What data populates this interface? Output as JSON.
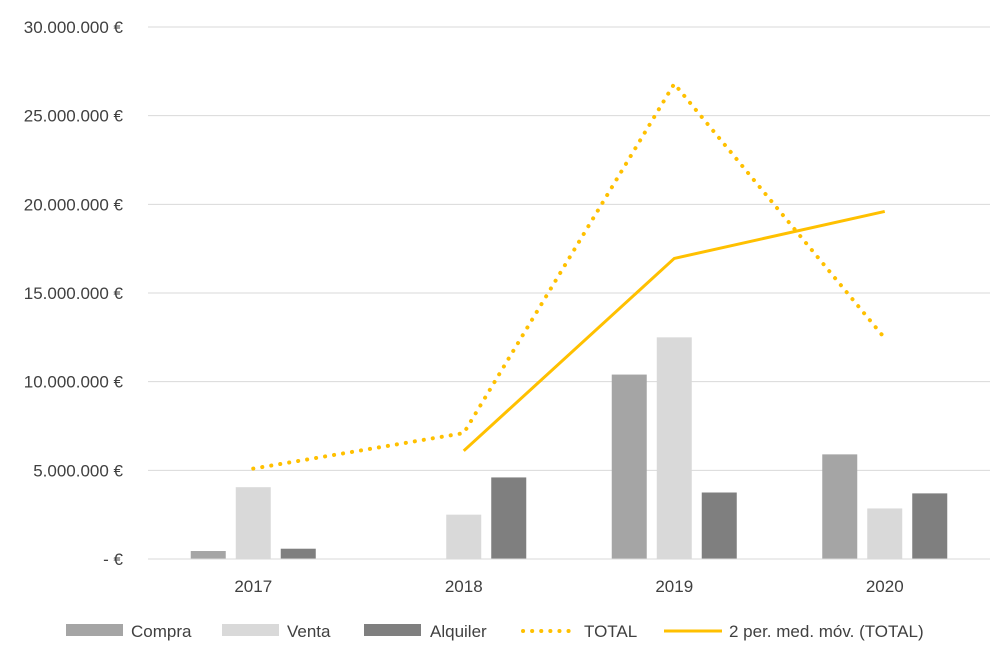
{
  "chart_data": {
    "type": "bar",
    "categories": [
      "2017",
      "2018",
      "2019",
      "2020"
    ],
    "series": [
      {
        "name": "Compra",
        "kind": "bar",
        "color": "#a5a5a5",
        "values": [
          450000,
          0,
          10400000,
          5900000
        ]
      },
      {
        "name": "Venta",
        "kind": "bar",
        "color": "#d9d9d9",
        "values": [
          4050000,
          2500000,
          12500000,
          2850000
        ]
      },
      {
        "name": "Alquiler",
        "kind": "bar",
        "color": "#7f7f7f",
        "values": [
          580000,
          4600000,
          3750000,
          3700000
        ]
      },
      {
        "name": "TOTAL",
        "kind": "line",
        "style": "dotted",
        "color": "#ffc000",
        "values": [
          5100000,
          7100000,
          26800000,
          12450000
        ]
      },
      {
        "name": "2 per. med. móv. (TOTAL)",
        "kind": "line",
        "style": "solid",
        "color": "#ffc000",
        "values": [
          null,
          6100000,
          16950000,
          19600000
        ]
      }
    ],
    "y_ticks": [
      0,
      5000000,
      10000000,
      15000000,
      20000000,
      25000000,
      30000000
    ],
    "y_tick_labels": [
      "-  €",
      "5.000.000 €",
      "10.000.000 €",
      "15.000.000 €",
      "20.000.000 €",
      "25.000.000 €",
      "30.000.000 €"
    ],
    "ylim": [
      0,
      30000000
    ],
    "grid": true,
    "legend_position": "bottom"
  }
}
